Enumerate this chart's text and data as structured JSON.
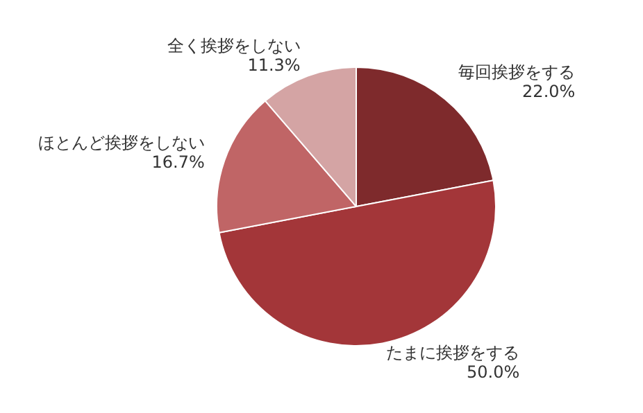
{
  "chart_data": {
    "type": "pie",
    "categories": [
      "毎回挨拶をする",
      "たまに挨拶をする",
      "ほとんど挨拶をしない",
      "全く挨拶をしない"
    ],
    "values": [
      22.0,
      50.0,
      16.7,
      11.3
    ],
    "colors": [
      "#7e2a2c",
      "#a33639",
      "#c06566",
      "#d4a4a4"
    ],
    "value_labels": [
      "22.0%",
      "50.0%",
      "16.7%",
      "11.3%"
    ],
    "legend": false
  }
}
